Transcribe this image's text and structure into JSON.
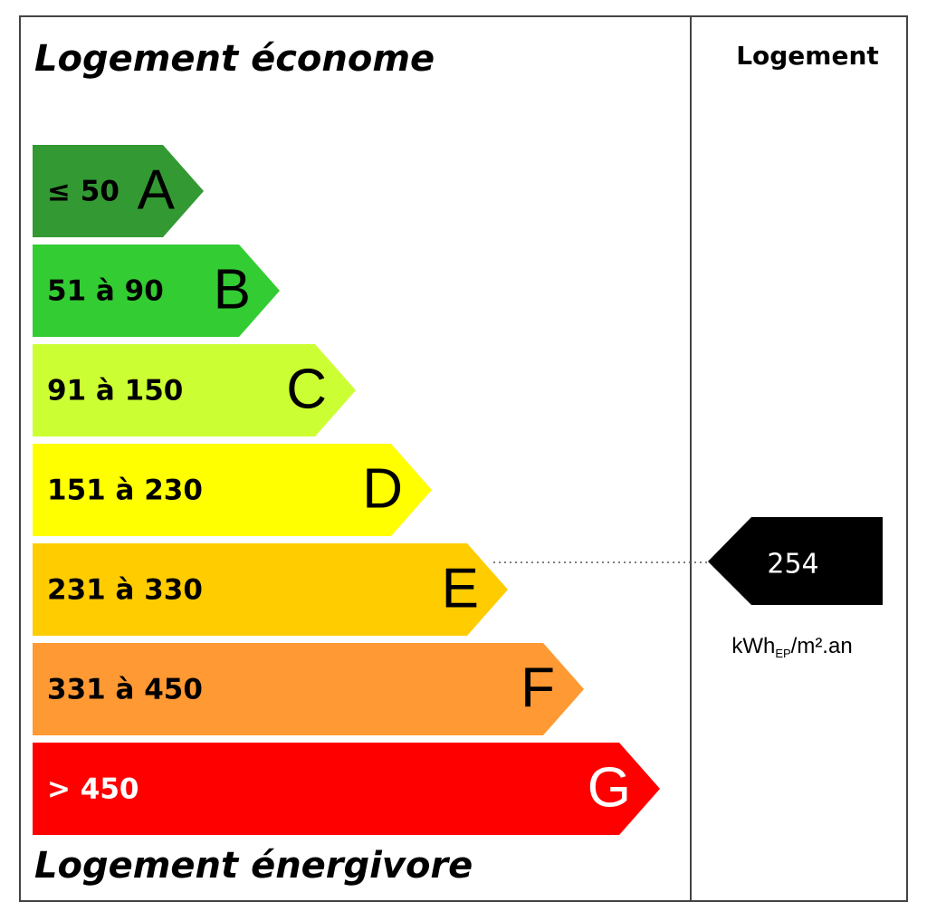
{
  "header": {
    "top_label": "Logement économe",
    "bottom_label": "Logement énergivore",
    "column_title": "Logement"
  },
  "classes": [
    {
      "range": "≤ 50",
      "letter": "A",
      "color": "#339933",
      "text_color": "#000000"
    },
    {
      "range": "51 à 90",
      "letter": "B",
      "color": "#33cc33",
      "text_color": "#000000"
    },
    {
      "range": "91 à 150",
      "letter": "C",
      "color": "#ccff33",
      "text_color": "#000000"
    },
    {
      "range": "151 à 230",
      "letter": "D",
      "color": "#ffff00",
      "text_color": "#000000"
    },
    {
      "range": "231 à 330",
      "letter": "E",
      "color": "#ffcc00",
      "text_color": "#000000"
    },
    {
      "range": "331 à 450",
      "letter": "F",
      "color": "#ff9933",
      "text_color": "#000000"
    },
    {
      "range": "> 450",
      "letter": "G",
      "color": "#ff0000",
      "text_color": "#ffffff"
    }
  ],
  "value": {
    "number": 254,
    "unit": "kWh",
    "unit_sub": "EP",
    "unit_rest": "/m².an"
  }
}
